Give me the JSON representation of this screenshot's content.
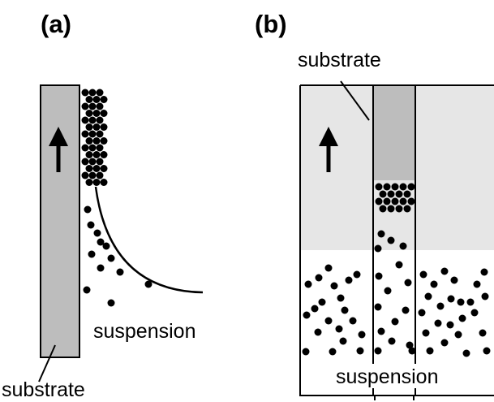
{
  "panels": [
    {
      "label": "(a)",
      "suspension": "suspension",
      "substrate": "substrate"
    },
    {
      "label": "(b)",
      "substrate": "substrate",
      "suspension": "suspension"
    }
  ]
}
